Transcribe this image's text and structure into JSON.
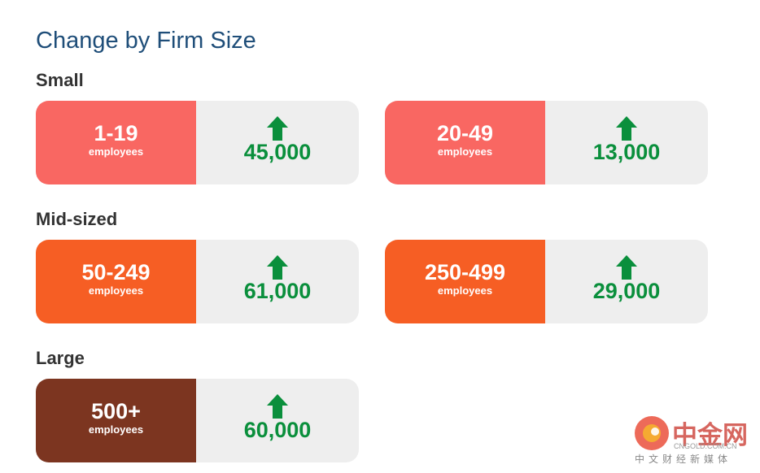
{
  "title": "Change by Firm Size",
  "groups": [
    {
      "label": "Small",
      "color": "#f96762",
      "cards": [
        {
          "range": "1-19",
          "unit": "employees",
          "change": "45,000"
        },
        {
          "range": "20-49",
          "unit": "employees",
          "change": "13,000"
        }
      ]
    },
    {
      "label": "Mid-sized",
      "color": "#f65e24",
      "cards": [
        {
          "range": "50-249",
          "unit": "employees",
          "change": "61,000"
        },
        {
          "range": "250-499",
          "unit": "employees",
          "change": "29,000"
        }
      ]
    },
    {
      "label": "Large",
      "color": "#7c3520",
      "cards": [
        {
          "range": "500+",
          "unit": "employees",
          "change": "60,000"
        }
      ]
    }
  ],
  "watermark": {
    "brand": "中金网",
    "domain": "CNGOLD.COM.CN",
    "tagline": "中文财经新媒体"
  }
}
